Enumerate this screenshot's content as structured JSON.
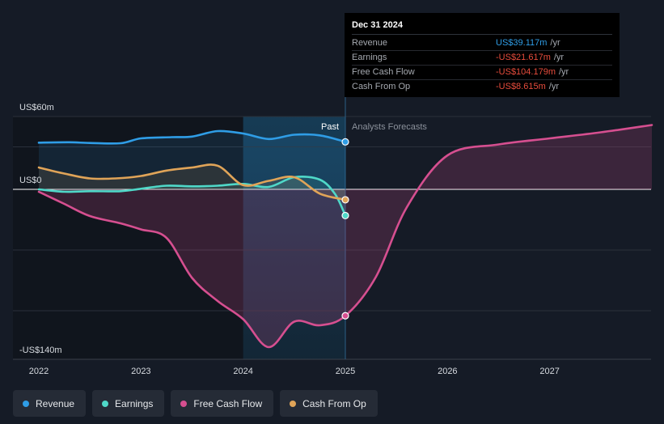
{
  "chart_data": {
    "type": "line",
    "y_axis": {
      "top_label": "US$60m",
      "zero_label": "US$0",
      "bottom_label": "-US$140m",
      "ylim": [
        -140,
        60
      ]
    },
    "x_ticks": [
      "2022",
      "2023",
      "2024",
      "2025",
      "2026",
      "2027"
    ],
    "x_range": [
      2021.75,
      2028
    ],
    "past_label": "Past",
    "forecast_label": "Analysts Forecasts",
    "past_end": 2025.0,
    "highlight_start": 2024.0,
    "series": [
      {
        "name": "Revenue",
        "color": "#2f9de6",
        "points": [
          [
            2022.0,
            38.5
          ],
          [
            2022.3,
            38.8
          ],
          [
            2022.5,
            38.2
          ],
          [
            2022.8,
            38.0
          ],
          [
            2023.0,
            42.0
          ],
          [
            2023.3,
            43.0
          ],
          [
            2023.5,
            43.5
          ],
          [
            2023.75,
            48.0
          ],
          [
            2024.0,
            46.0
          ],
          [
            2024.25,
            41.5
          ],
          [
            2024.5,
            45.0
          ],
          [
            2024.75,
            44.5
          ],
          [
            2025.0,
            39.117
          ]
        ]
      },
      {
        "name": "Earnings",
        "color": "#4fd8c8",
        "points": [
          [
            2022.0,
            0.0
          ],
          [
            2022.25,
            -2.0
          ],
          [
            2022.5,
            -1.5
          ],
          [
            2022.8,
            -1.5
          ],
          [
            2023.0,
            0.5
          ],
          [
            2023.25,
            3.0
          ],
          [
            2023.5,
            2.5
          ],
          [
            2023.75,
            3.0
          ],
          [
            2024.0,
            4.5
          ],
          [
            2024.25,
            2.0
          ],
          [
            2024.5,
            10.0
          ],
          [
            2024.75,
            8.0
          ],
          [
            2024.9,
            -4.0
          ],
          [
            2025.0,
            -21.617
          ]
        ]
      },
      {
        "name": "Free Cash Flow",
        "color": "#d64f90",
        "points": [
          [
            2022.0,
            -2.0
          ],
          [
            2022.25,
            -12.0
          ],
          [
            2022.5,
            -22.0
          ],
          [
            2022.8,
            -28.0
          ],
          [
            2023.0,
            -33.0
          ],
          [
            2023.25,
            -40.0
          ],
          [
            2023.5,
            -73.0
          ],
          [
            2023.75,
            -92.0
          ],
          [
            2024.0,
            -107.0
          ],
          [
            2024.25,
            -130.0
          ],
          [
            2024.5,
            -109.0
          ],
          [
            2024.75,
            -112.0
          ],
          [
            2025.0,
            -104.179
          ],
          [
            2025.3,
            -72.0
          ],
          [
            2025.6,
            -15.0
          ],
          [
            2026.0,
            28.0
          ],
          [
            2026.5,
            37.0
          ],
          [
            2027.0,
            42.0
          ],
          [
            2027.5,
            47.0
          ],
          [
            2028.0,
            53.0
          ]
        ]
      },
      {
        "name": "Cash From Op",
        "color": "#e0a458",
        "points": [
          [
            2022.0,
            18.0
          ],
          [
            2022.25,
            13.0
          ],
          [
            2022.5,
            9.0
          ],
          [
            2022.75,
            9.0
          ],
          [
            2023.0,
            11.0
          ],
          [
            2023.25,
            15.5
          ],
          [
            2023.5,
            18.0
          ],
          [
            2023.75,
            19.5
          ],
          [
            2024.0,
            3.5
          ],
          [
            2024.25,
            7.0
          ],
          [
            2024.5,
            10.0
          ],
          [
            2024.75,
            -3.5
          ],
          [
            2025.0,
            -8.615
          ]
        ]
      }
    ]
  },
  "tooltip": {
    "date": "Dec 31 2024",
    "rows": [
      {
        "label": "Revenue",
        "value": "US$39.117m",
        "unit": "/yr",
        "color": "#2f9de6"
      },
      {
        "label": "Earnings",
        "value": "-US$21.617m",
        "unit": "/yr",
        "color": "#e74c3c"
      },
      {
        "label": "Free Cash Flow",
        "value": "-US$104.179m",
        "unit": "/yr",
        "color": "#e74c3c"
      },
      {
        "label": "Cash From Op",
        "value": "-US$8.615m",
        "unit": "/yr",
        "color": "#e74c3c"
      }
    ]
  },
  "legend": [
    {
      "label": "Revenue",
      "color": "#2f9de6"
    },
    {
      "label": "Earnings",
      "color": "#4fd8c8"
    },
    {
      "label": "Free Cash Flow",
      "color": "#d64f90"
    },
    {
      "label": "Cash From Op",
      "color": "#e0a458"
    }
  ]
}
